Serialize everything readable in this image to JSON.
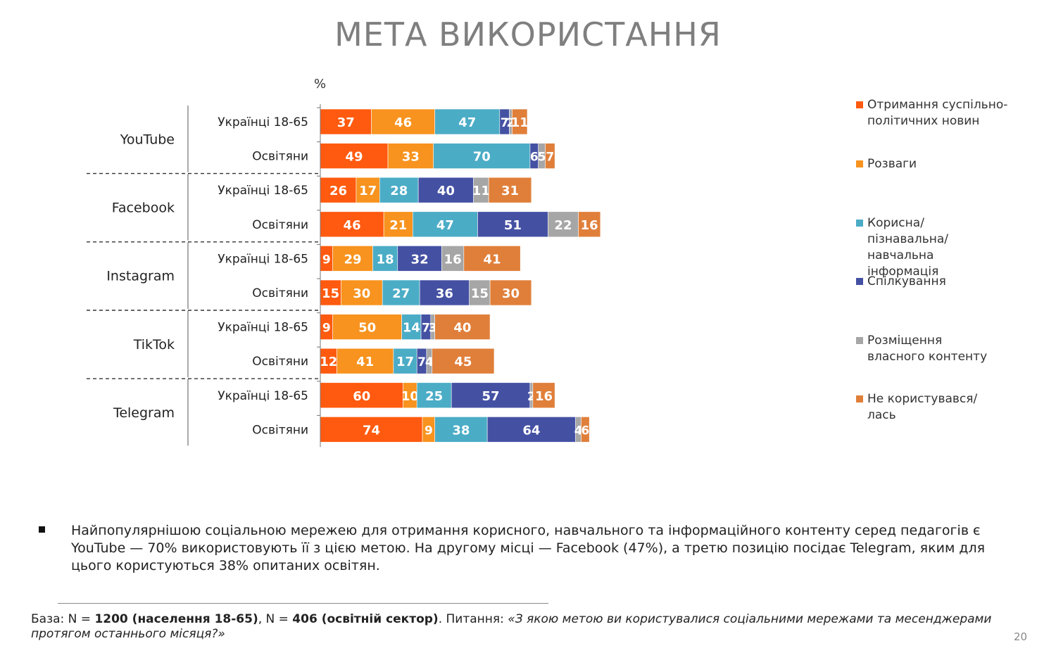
{
  "title": "МЕТА ВИКОРИСТАННЯ",
  "chart_data": {
    "type": "bar",
    "orientation": "horizontal",
    "stacked": true,
    "unit_label": "%",
    "groups": [
      {
        "name": "YouTube",
        "rows": [
          {
            "label": "Українці 18-65",
            "values": [
              37,
              46,
              47,
              7,
              2,
              11
            ]
          },
          {
            "label": "Освітяни",
            "values": [
              49,
              33,
              70,
              6,
              5,
              7
            ]
          }
        ]
      },
      {
        "name": "Facebook",
        "rows": [
          {
            "label": "Українці 18-65",
            "values": [
              26,
              17,
              28,
              40,
              11,
              31
            ]
          },
          {
            "label": "Освітяни",
            "values": [
              46,
              21,
              47,
              51,
              22,
              16
            ]
          }
        ]
      },
      {
        "name": "Instagram",
        "rows": [
          {
            "label": "Українці 18-65",
            "values": [
              9,
              29,
              18,
              32,
              16,
              41
            ]
          },
          {
            "label": "Освітяни",
            "values": [
              15,
              30,
              27,
              36,
              15,
              30
            ]
          }
        ]
      },
      {
        "name": "TikTok",
        "rows": [
          {
            "label": "Українці 18-65",
            "values": [
              9,
              50,
              14,
              7,
              3,
              40
            ]
          },
          {
            "label": "Освітяни",
            "values": [
              12,
              41,
              17,
              7,
              4,
              45
            ]
          }
        ]
      },
      {
        "name": "Telegram",
        "rows": [
          {
            "label": "Українці 18-65",
            "values": [
              60,
              10,
              25,
              57,
              2,
              16
            ]
          },
          {
            "label": "Освітяни",
            "values": [
              74,
              9,
              38,
              64,
              4,
              6
            ]
          }
        ]
      }
    ],
    "series": [
      {
        "name": "Отримання суспільно-політичних новин",
        "color": "#FF5A0F"
      },
      {
        "name": "Розваги",
        "color": "#F7931E"
      },
      {
        "name": "Корисна/ пізнавальна/ навчальна інформація",
        "color": "#4BACC6"
      },
      {
        "name": "Спілкування",
        "color": "#4451A3"
      },
      {
        "name": "Розміщення власного контенту",
        "color": "#A6A6A6"
      },
      {
        "name": "Не користувався/ лась",
        "color": "#E07F3A"
      }
    ],
    "legend_position": "right",
    "grid": false
  },
  "legend": [
    {
      "label": "Отримання суспільно-політичних новин"
    },
    {
      "label": "Розваги"
    },
    {
      "label": "Корисна/ пізнавальна/ навчальна інформація"
    },
    {
      "label": "Спілкування"
    },
    {
      "label": "Розміщення власного контенту"
    },
    {
      "label": "Не користувався/ лась"
    }
  ],
  "bullet": "Найпопулярнішою соціальною мережею для отримання корисного, навчального та інформаційного контенту серед педагогів є YouTube — 70% використовують її з цією метою. На другому місці — Facebook (47%), а третю позицію посідає Telegram, яким для цього користуються 38% опитаних освітян.",
  "base_note": {
    "prefix": "База: N = ",
    "pop_bold": "1200 (населення 18-65)",
    "sep": ", N = ",
    "edu_bold": "406 (освітній сектор)",
    "question_prefix": ". Питання: ",
    "question_italic": "«З якою метою ви користувалися соціальними мережами та месенджерами протягом останнього місяця?»"
  },
  "page_number": "20"
}
